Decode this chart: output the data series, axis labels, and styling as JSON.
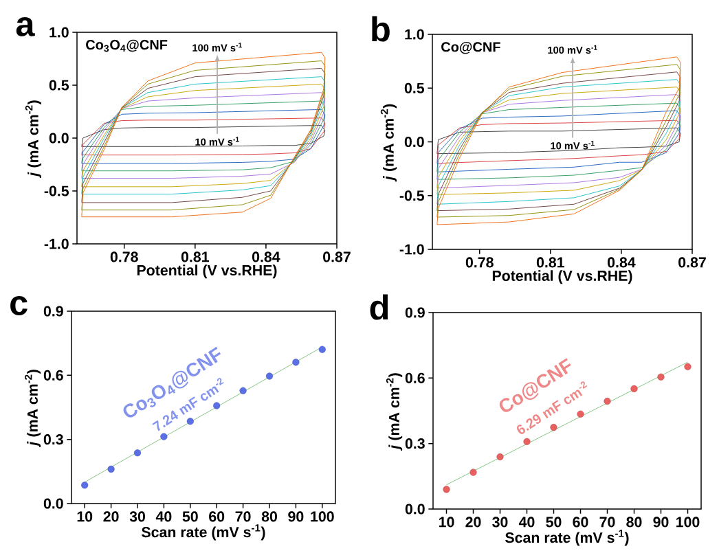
{
  "chart_data": [
    {
      "type": "line",
      "title": "a",
      "xlabel": "Potential (V vs.RHE)",
      "ylabel": "*j* (mA cm$^{-2}$)",
      "xlim": [
        0.76,
        0.87
      ],
      "ylim": [
        -1,
        1
      ],
      "xticks": [
        0.78,
        0.81,
        0.84,
        0.87
      ],
      "yticks": [
        {
          "value": -1,
          "label": "-1.0"
        },
        -0.5,
        {
          "value": 0,
          "label": "0.0"
        },
        0.5,
        {
          "value": 1,
          "label": "1.0"
        }
      ],
      "annotations": [
        "Co$_{3}$O$_{4}$@CNF",
        "100 mV s$^{-1}$",
        "10 mV s$^{-1}$"
      ],
      "x": [
        0.762,
        0.7625,
        0.7715,
        0.779,
        0.79,
        0.81,
        0.8635,
        0.865
      ],
      "series": [
        {
          "color": "#3a3a3a",
          "values": [
            -0.08,
            0.0,
            0.08,
            0.095,
            0.1,
            0.1,
            0.12,
            0.07
          ]
        },
        {
          "color": "#3a3a3a",
          "x": [
            0.762,
            0.8,
            0.83,
            0.842,
            0.852,
            0.859,
            0.8645,
            0.865
          ],
          "values": [
            -0.08,
            -0.08,
            -0.075,
            -0.07,
            -0.07,
            -0.05,
            0.02,
            0.07
          ]
        },
        {
          "color": "#d9383a",
          "values": [
            -0.16,
            -0.06,
            0.14,
            0.165,
            0.17,
            0.17,
            0.19,
            0.14
          ]
        },
        {
          "color": "#d9383a",
          "x": [
            0.762,
            0.8,
            0.83,
            0.842,
            0.852,
            0.859,
            0.8645,
            0.865
          ],
          "values": [
            -0.16,
            -0.16,
            -0.155,
            -0.15,
            -0.14,
            -0.1,
            0.06,
            0.14
          ]
        },
        {
          "color": "#1f5fbf",
          "values": [
            -0.24,
            -0.13,
            0.13,
            0.225,
            0.235,
            0.24,
            0.27,
            0.22
          ]
        },
        {
          "color": "#1f5fbf",
          "x": [
            0.762,
            0.8,
            0.83,
            0.842,
            0.852,
            0.859,
            0.8645,
            0.865
          ],
          "values": [
            -0.24,
            -0.24,
            -0.23,
            -0.22,
            -0.2,
            -0.1,
            0.12,
            0.22
          ]
        },
        {
          "color": "#2e9a5c",
          "values": [
            -0.31,
            -0.19,
            0.1,
            0.27,
            0.3,
            0.31,
            0.35,
            0.3
          ]
        },
        {
          "color": "#2e9a5c",
          "x": [
            0.762,
            0.8,
            0.83,
            0.842,
            0.852,
            0.859,
            0.8645,
            0.865
          ],
          "values": [
            -0.31,
            -0.31,
            -0.3,
            -0.28,
            -0.22,
            -0.06,
            0.18,
            0.3
          ]
        },
        {
          "color": "#a86ee0",
          "values": [
            -0.38,
            -0.25,
            0.07,
            0.28,
            0.35,
            0.38,
            0.43,
            0.38
          ]
        },
        {
          "color": "#a86ee0",
          "x": [
            0.762,
            0.8,
            0.83,
            0.842,
            0.852,
            0.859,
            0.8645,
            0.865
          ],
          "values": [
            -0.38,
            -0.38,
            -0.36,
            -0.34,
            -0.23,
            -0.03,
            0.24,
            0.38
          ]
        },
        {
          "color": "#c9a300",
          "values": [
            -0.46,
            -0.31,
            0.03,
            0.28,
            0.39,
            0.45,
            0.51,
            0.46
          ]
        },
        {
          "color": "#c9a300",
          "x": [
            0.762,
            0.8,
            0.83,
            0.842,
            0.852,
            0.859,
            0.8645,
            0.865
          ],
          "values": [
            -0.46,
            -0.46,
            -0.43,
            -0.4,
            -0.22,
            0.0,
            0.3,
            0.46
          ]
        },
        {
          "color": "#1ec0c8",
          "values": [
            -0.53,
            -0.37,
            0.0,
            0.285,
            0.43,
            0.51,
            0.58,
            0.53
          ]
        },
        {
          "color": "#1ec0c8",
          "x": [
            0.762,
            0.8,
            0.83,
            0.842,
            0.852,
            0.859,
            0.8645,
            0.865
          ],
          "values": [
            -0.53,
            -0.53,
            -0.49,
            -0.45,
            -0.21,
            0.03,
            0.35,
            0.53
          ]
        },
        {
          "color": "#6e3b3b",
          "values": [
            -0.61,
            -0.43,
            -0.04,
            0.285,
            0.47,
            0.58,
            0.66,
            0.61
          ]
        },
        {
          "color": "#6e3b3b",
          "x": [
            0.762,
            0.8,
            0.83,
            0.842,
            0.852,
            0.859,
            0.8645,
            0.865
          ],
          "values": [
            -0.61,
            -0.61,
            -0.56,
            -0.5,
            -0.2,
            0.05,
            0.4,
            0.61
          ]
        },
        {
          "color": "#8c8c00",
          "values": [
            -0.68,
            -0.48,
            -0.08,
            0.29,
            0.51,
            0.64,
            0.73,
            0.68
          ]
        },
        {
          "color": "#8c8c00",
          "x": [
            0.762,
            0.8,
            0.83,
            0.842,
            0.852,
            0.859,
            0.8645,
            0.865
          ],
          "values": [
            -0.68,
            -0.68,
            -0.63,
            -0.54,
            -0.19,
            0.07,
            0.44,
            0.68
          ]
        },
        {
          "color": "#f06a10",
          "values": [
            -0.745,
            -0.52,
            -0.11,
            0.29,
            0.54,
            0.71,
            0.81,
            0.76
          ]
        },
        {
          "color": "#f06a10",
          "x": [
            0.762,
            0.8,
            0.83,
            0.842,
            0.852,
            0.859,
            0.8645,
            0.865
          ],
          "values": [
            -0.745,
            -0.745,
            -0.7,
            -0.57,
            -0.18,
            0.08,
            0.47,
            0.76
          ]
        }
      ]
    },
    {
      "type": "line",
      "title": "b",
      "xlabel": "Potential (V vs.RHE)",
      "ylabel": "*j* (mA cm$^{-2}$)",
      "xlim": [
        0.76,
        0.87
      ],
      "ylim": [
        -1,
        1
      ],
      "xticks": [
        0.78,
        0.81,
        0.84,
        0.87
      ],
      "yticks": [
        {
          "value": -1,
          "label": "-1.0"
        },
        -0.5,
        {
          "value": 0,
          "label": "0.0"
        },
        0.5,
        {
          "value": 1,
          "label": "1.0"
        }
      ],
      "annotations": [
        "Co@CNF",
        "100 mV s$^{-1}$",
        "10 mV s$^{-1}$"
      ],
      "x": [
        0.762,
        0.7625,
        0.7715,
        0.781,
        0.7925,
        0.815,
        0.8635,
        0.865
      ],
      "series": [
        {
          "color": "#3a3a3a",
          "values": [
            -0.11,
            0.02,
            0.09,
            0.095,
            0.1,
            0.1,
            0.13,
            0.08
          ]
        },
        {
          "color": "#3a3a3a",
          "x": [
            0.762,
            0.7925,
            0.82,
            0.8393,
            0.8487,
            0.859,
            0.8645,
            0.865
          ],
          "values": [
            -0.11,
            -0.1,
            -0.08,
            -0.055,
            -0.05,
            -0.04,
            0.0,
            0.08
          ]
        },
        {
          "color": "#d9383a",
          "values": [
            -0.2,
            -0.03,
            0.13,
            0.16,
            0.17,
            0.175,
            0.2,
            0.15
          ]
        },
        {
          "color": "#d9383a",
          "x": [
            0.762,
            0.7925,
            0.82,
            0.8393,
            0.8487,
            0.859,
            0.8645,
            0.865
          ],
          "values": [
            -0.2,
            -0.175,
            -0.155,
            -0.13,
            -0.12,
            -0.09,
            0.03,
            0.15
          ]
        },
        {
          "color": "#1f5fbf",
          "values": [
            -0.28,
            -0.1,
            0.12,
            0.22,
            0.23,
            0.24,
            0.29,
            0.24
          ]
        },
        {
          "color": "#1f5fbf",
          "x": [
            0.762,
            0.7925,
            0.82,
            0.8393,
            0.8487,
            0.859,
            0.8645,
            0.865
          ],
          "values": [
            -0.28,
            -0.255,
            -0.235,
            -0.19,
            -0.19,
            -0.1,
            0.08,
            0.24
          ]
        },
        {
          "color": "#2e9a5c",
          "values": [
            -0.35,
            -0.17,
            0.09,
            0.26,
            0.3,
            0.32,
            0.36,
            0.31
          ]
        },
        {
          "color": "#2e9a5c",
          "x": [
            0.762,
            0.7925,
            0.82,
            0.8393,
            0.8487,
            0.859,
            0.8645,
            0.865
          ],
          "values": [
            -0.35,
            -0.335,
            -0.31,
            -0.265,
            -0.24,
            -0.07,
            0.14,
            0.31
          ]
        },
        {
          "color": "#a86ee0",
          "values": [
            -0.43,
            -0.25,
            0.05,
            0.27,
            0.35,
            0.385,
            0.44,
            0.39
          ]
        },
        {
          "color": "#a86ee0",
          "x": [
            0.762,
            0.7925,
            0.82,
            0.8393,
            0.8487,
            0.859,
            0.8645,
            0.865
          ],
          "values": [
            -0.43,
            -0.405,
            -0.38,
            -0.33,
            -0.255,
            -0.03,
            0.2,
            0.39
          ]
        },
        {
          "color": "#c9a300",
          "values": [
            -0.49,
            -0.33,
            0.01,
            0.27,
            0.39,
            0.45,
            0.51,
            0.46
          ]
        },
        {
          "color": "#c9a300",
          "x": [
            0.762,
            0.7925,
            0.82,
            0.8393,
            0.8487,
            0.859,
            0.8645,
            0.865
          ],
          "values": [
            -0.49,
            -0.475,
            -0.45,
            -0.36,
            -0.26,
            0.02,
            0.26,
            0.46
          ]
        },
        {
          "color": "#1ec0c8",
          "values": [
            -0.58,
            -0.41,
            -0.03,
            0.27,
            0.43,
            0.51,
            0.58,
            0.53
          ]
        },
        {
          "color": "#1ec0c8",
          "x": [
            0.762,
            0.7925,
            0.82,
            0.8393,
            0.8487,
            0.859,
            0.8645,
            0.865
          ],
          "values": [
            -0.58,
            -0.555,
            -0.52,
            -0.41,
            -0.26,
            0.08,
            0.32,
            0.53
          ]
        },
        {
          "color": "#6e3b3b",
          "values": [
            -0.64,
            -0.49,
            -0.07,
            0.27,
            0.46,
            0.545,
            0.65,
            0.6
          ]
        },
        {
          "color": "#6e3b3b",
          "x": [
            0.762,
            0.7925,
            0.82,
            0.8393,
            0.8487,
            0.859,
            0.8645,
            0.865
          ],
          "values": [
            -0.64,
            -0.625,
            -0.58,
            -0.43,
            -0.26,
            0.14,
            0.38,
            0.6
          ]
        },
        {
          "color": "#8c8c00",
          "values": [
            -0.7,
            -0.56,
            -0.11,
            0.27,
            0.49,
            0.61,
            0.72,
            0.67
          ]
        },
        {
          "color": "#8c8c00",
          "x": [
            0.762,
            0.7925,
            0.82,
            0.8393,
            0.8487,
            0.859,
            0.8645,
            0.865
          ],
          "values": [
            -0.7,
            -0.685,
            -0.63,
            -0.44,
            -0.26,
            0.2,
            0.44,
            0.67
          ]
        },
        {
          "color": "#f06a10",
          "values": [
            -0.77,
            -0.62,
            -0.15,
            0.26,
            0.51,
            0.645,
            0.79,
            0.74
          ]
        },
        {
          "color": "#f06a10",
          "x": [
            0.762,
            0.7925,
            0.82,
            0.8393,
            0.8487,
            0.859,
            0.8645,
            0.865
          ],
          "values": [
            -0.77,
            -0.745,
            -0.67,
            -0.45,
            -0.26,
            0.28,
            0.5,
            0.74
          ]
        }
      ]
    },
    {
      "type": "scatter",
      "title": "c",
      "xlabel": "Scan rate (mV s$^{-1}$)",
      "ylabel": "*j* (mA cm$^{-2}$)",
      "xlim": [
        5,
        105
      ],
      "ylim": [
        0,
        0.9
      ],
      "xticks": [
        10,
        20,
        30,
        40,
        50,
        60,
        70,
        80,
        90,
        100
      ],
      "yticks": [
        {
          "value": 0,
          "label": "0.0"
        },
        0.3,
        0.6,
        0.9
      ],
      "annotations": [
        "Co$_{3}$O$_{4}$@CNF",
        "7.24 mF cm$^{-2}$"
      ],
      "x": [
        10,
        20,
        30,
        40,
        50,
        60,
        70,
        80,
        90,
        100
      ],
      "series": [
        {
          "color": "#5a6ee6",
          "marker": "circle",
          "values": [
            0.086,
            0.161,
            0.237,
            0.313,
            0.385,
            0.458,
            0.528,
            0.596,
            0.661,
            0.721
          ]
        },
        {
          "type": "line",
          "color": "#7cc47c",
          "x": [
            10,
            100
          ],
          "values": [
            0.1,
            0.733
          ]
        }
      ]
    },
    {
      "type": "scatter",
      "title": "d",
      "xlabel": "Scan rate (mV s$^{-1}$)",
      "ylabel": "*j* (mA cm$^{-2}$)",
      "xlim": [
        5,
        105
      ],
      "ylim": [
        0,
        0.9
      ],
      "xticks": [
        10,
        20,
        30,
        40,
        50,
        60,
        70,
        80,
        90,
        100
      ],
      "yticks": [
        {
          "value": 0,
          "label": "0.0"
        },
        0.3,
        0.6,
        0.9
      ],
      "annotations": [
        "Co@CNF",
        "6.29 mF cm$^{-2}$"
      ],
      "x": [
        10,
        20,
        30,
        40,
        50,
        60,
        70,
        80,
        90,
        100
      ],
      "series": [
        {
          "color": "#e86060",
          "marker": "circle",
          "values": [
            0.09,
            0.168,
            0.239,
            0.309,
            0.374,
            0.435,
            0.494,
            0.551,
            0.605,
            0.652
          ]
        },
        {
          "type": "line",
          "color": "#7cc47c",
          "x": [
            10,
            100
          ],
          "values": [
            0.111,
            0.673
          ]
        }
      ]
    }
  ]
}
